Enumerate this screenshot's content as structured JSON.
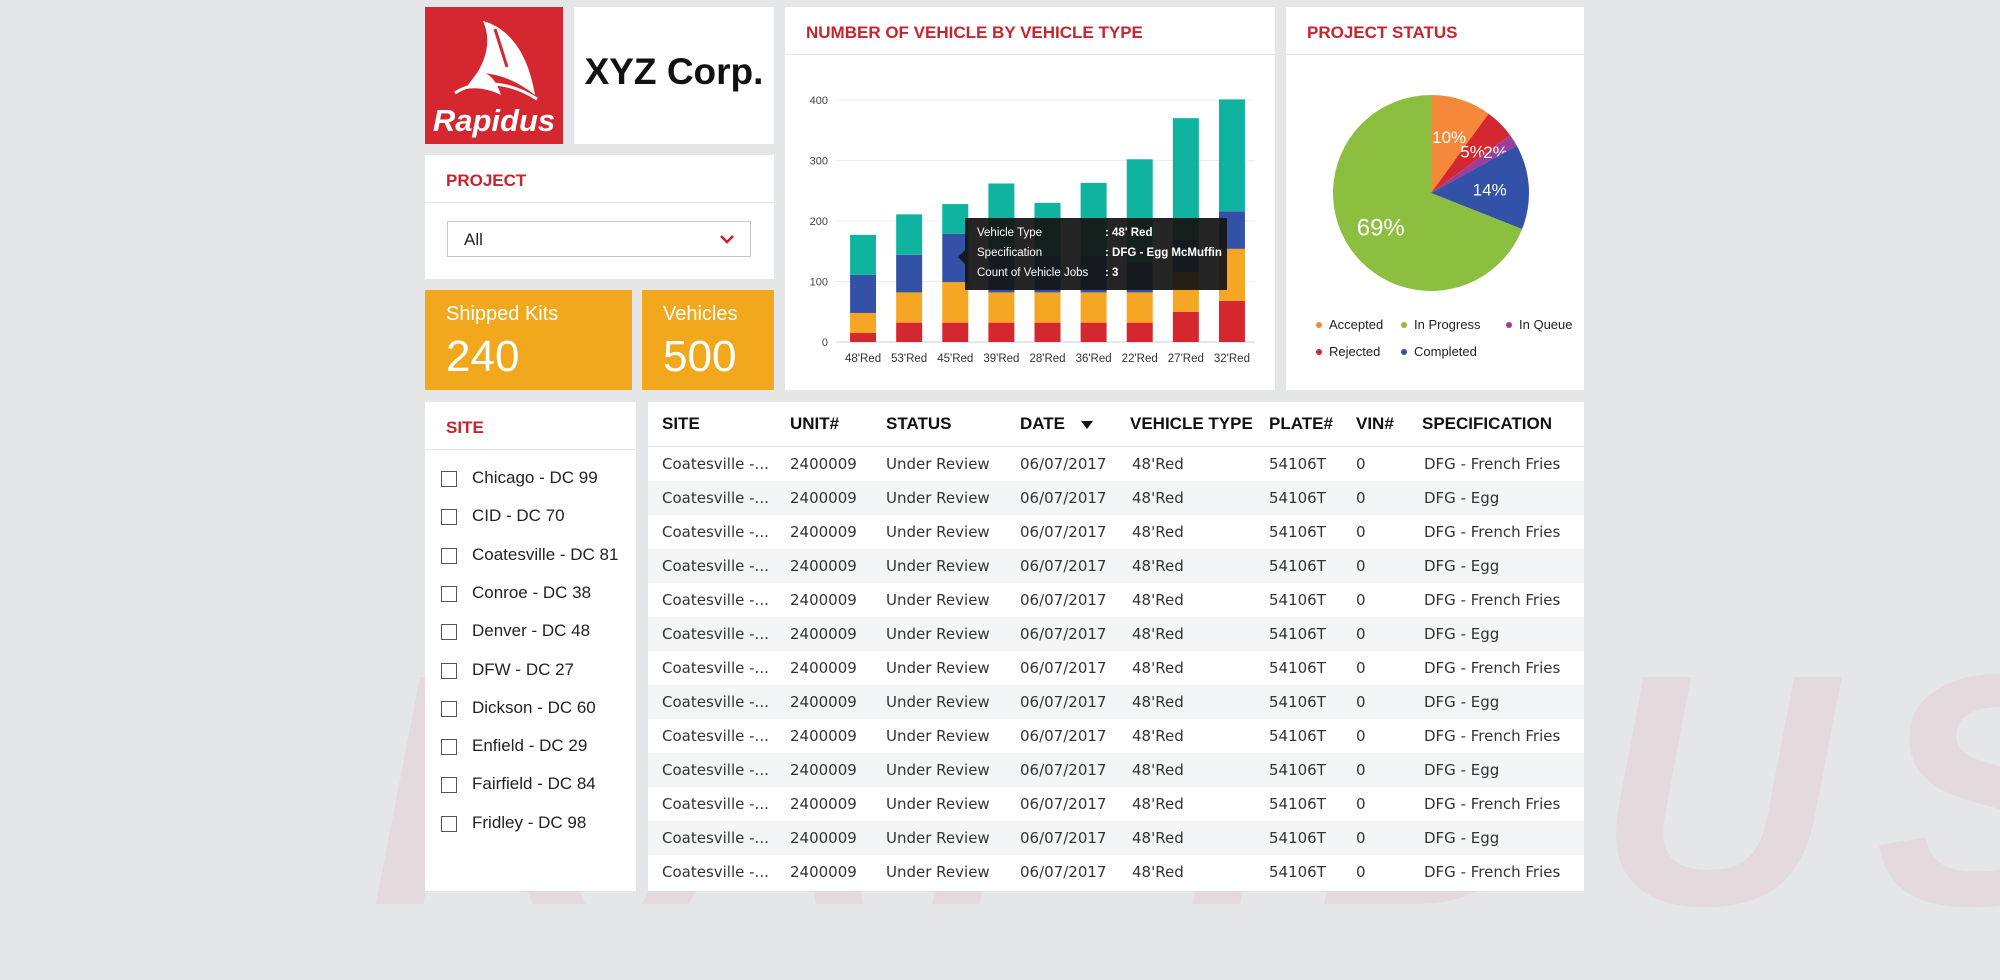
{
  "brand": {
    "logo_text": "Rapidus",
    "company_name": "XYZ Corp."
  },
  "project": {
    "title": "PROJECT",
    "selected": "All"
  },
  "kpis": {
    "shipped_kits": {
      "label": "Shipped Kits",
      "value": "240"
    },
    "vehicles": {
      "label": "Vehicles",
      "value": "500"
    }
  },
  "bar_chart": {
    "title": "NUMBER OF VEHICLE BY VEHICLE TYPE",
    "tooltip": {
      "rows": [
        {
          "key": "Vehicle Type",
          "value": ": 48' Red"
        },
        {
          "key": "Specification",
          "value": ": DFG - Egg McMuffin"
        },
        {
          "key": "Count of Vehicle Jobs",
          "value": ": 3"
        }
      ]
    }
  },
  "pie_chart": {
    "title": "PROJECT STATUS"
  },
  "chart_data": [
    {
      "type": "bar",
      "stacked": true,
      "title": "NUMBER OF VEHICLE BY VEHICLE TYPE",
      "categories": [
        "48'Red",
        "53'Red",
        "45'Red",
        "39'Red",
        "28'Red",
        "36'Red",
        "22'Red",
        "27'Red",
        "32'Red"
      ],
      "series": [
        {
          "color": "#d5272f",
          "values": [
            15,
            32,
            32,
            32,
            32,
            32,
            32,
            50,
            68
          ]
        },
        {
          "color": "#f5a623",
          "values": [
            33,
            50,
            67,
            50,
            50,
            50,
            50,
            66,
            86
          ]
        },
        {
          "color": "#3351a6",
          "values": [
            63,
            62,
            80,
            60,
            60,
            60,
            50,
            54,
            62
          ]
        },
        {
          "color": "#10b3a0",
          "values": [
            66,
            67,
            49,
            120,
            88,
            121,
            170,
            200,
            185
          ]
        }
      ],
      "yticks": [
        0,
        100,
        200,
        300,
        400
      ],
      "ylim": [
        0,
        400
      ],
      "grid": true
    },
    {
      "type": "pie",
      "title": "PROJECT STATUS",
      "slices": [
        {
          "label": "Accepted",
          "value": 10,
          "display": "10%",
          "color": "#f5883a"
        },
        {
          "label": "Rejected",
          "value": 5,
          "display": "5%",
          "color": "#d5272f"
        },
        {
          "label": "In Queue",
          "value": 2,
          "display": "2%",
          "color": "#9b3d9b"
        },
        {
          "label": "Completed",
          "value": 14,
          "display": "14%",
          "color": "#3351a6"
        },
        {
          "label": "In Progress",
          "value": 69,
          "display": "69%",
          "color": "#8cbf3f"
        }
      ],
      "legend": [
        "Accepted",
        "In Progress",
        "In Queue",
        "Rejected",
        "Completed"
      ],
      "legend_position": "bottom"
    }
  ],
  "site": {
    "title": "SITE",
    "items": [
      "Chicago - DC 99",
      "CID - DC 70",
      "Coatesville - DC 81",
      "Conroe - DC 38",
      "Denver - DC 48",
      "DFW - DC 27",
      "Dickson - DC 60",
      "Enfield - DC 29",
      "Fairfield - DC 84",
      "Fridley - DC 98"
    ]
  },
  "table": {
    "columns": [
      "SITE",
      "UNIT#",
      "STATUS",
      "DATE",
      "VEHICLE TYPE",
      "PLATE#",
      "VIN#",
      "SPECIFICATION"
    ],
    "rows": [
      [
        "Coatesville -...",
        "2400009",
        "Under Review",
        "06/07/2017",
        "48'Red",
        "54106T",
        "0",
        "DFG - French Fries"
      ],
      [
        "Coatesville -...",
        "2400009",
        "Under Review",
        "06/07/2017",
        "48'Red",
        "54106T",
        "0",
        "DFG - Egg"
      ],
      [
        "Coatesville -...",
        "2400009",
        "Under Review",
        "06/07/2017",
        "48'Red",
        "54106T",
        "0",
        "DFG - French Fries"
      ],
      [
        "Coatesville -...",
        "2400009",
        "Under Review",
        "06/07/2017",
        "48'Red",
        "54106T",
        "0",
        "DFG - Egg"
      ],
      [
        "Coatesville -...",
        "2400009",
        "Under Review",
        "06/07/2017",
        "48'Red",
        "54106T",
        "0",
        "DFG - French Fries"
      ],
      [
        "Coatesville -...",
        "2400009",
        "Under Review",
        "06/07/2017",
        "48'Red",
        "54106T",
        "0",
        "DFG - Egg"
      ],
      [
        "Coatesville -...",
        "2400009",
        "Under Review",
        "06/07/2017",
        "48'Red",
        "54106T",
        "0",
        "DFG - French Fries"
      ],
      [
        "Coatesville -...",
        "2400009",
        "Under Review",
        "06/07/2017",
        "48'Red",
        "54106T",
        "0",
        "DFG - Egg"
      ],
      [
        "Coatesville -...",
        "2400009",
        "Under Review",
        "06/07/2017",
        "48'Red",
        "54106T",
        "0",
        "DFG - French Fries"
      ],
      [
        "Coatesville -...",
        "2400009",
        "Under Review",
        "06/07/2017",
        "48'Red",
        "54106T",
        "0",
        "DFG - Egg"
      ],
      [
        "Coatesville -...",
        "2400009",
        "Under Review",
        "06/07/2017",
        "48'Red",
        "54106T",
        "0",
        "DFG - French Fries"
      ],
      [
        "Coatesville -...",
        "2400009",
        "Under Review",
        "06/07/2017",
        "48'Red",
        "54106T",
        "0",
        "DFG - Egg"
      ],
      [
        "Coatesville -...",
        "2400009",
        "Under Review",
        "06/07/2017",
        "48'Red",
        "54106T",
        "0",
        "DFG - French Fries"
      ]
    ]
  },
  "icons": {
    "dropdown": "chevron-down-icon",
    "sort": "sort-desc-icon",
    "logo": "sail-logo-icon"
  }
}
